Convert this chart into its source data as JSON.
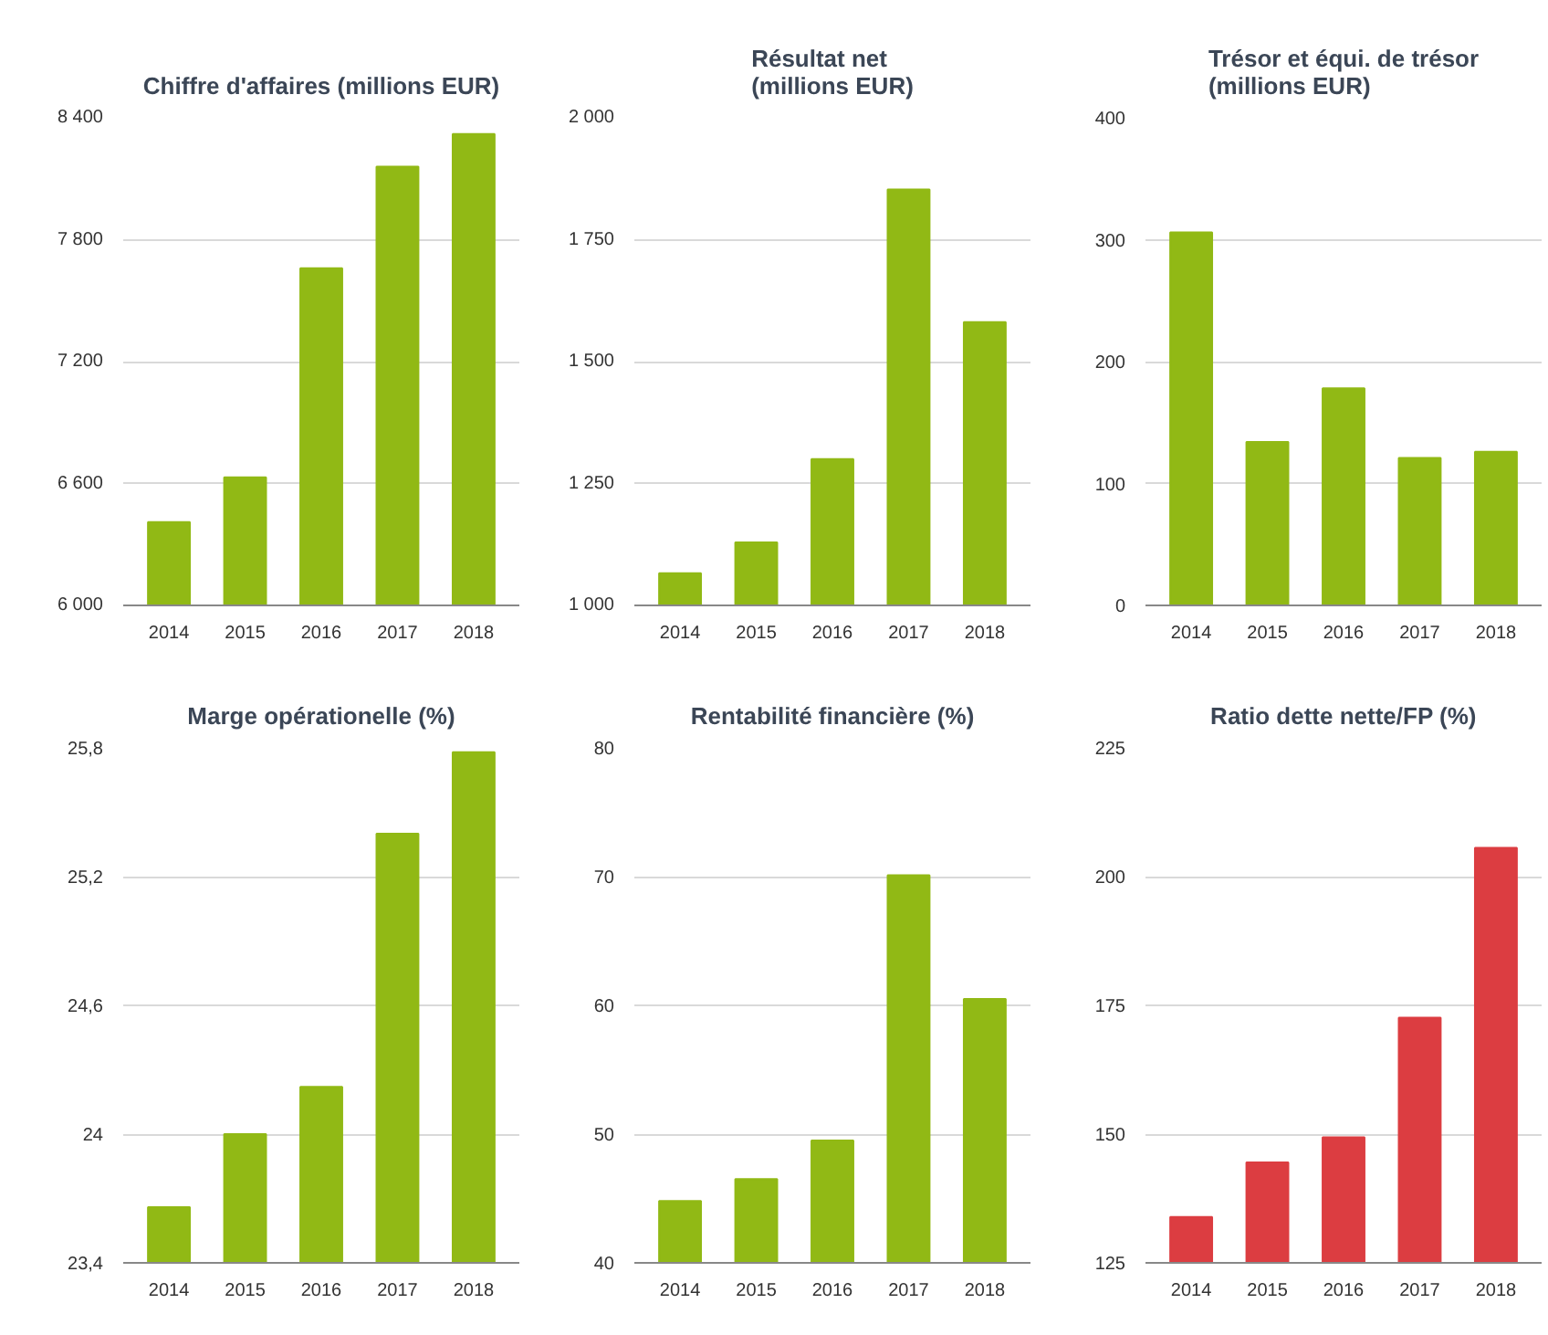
{
  "chart_data": [
    {
      "type": "bar",
      "title": "Chiffre d'affaires (millions EUR)",
      "categories": [
        "2014",
        "2015",
        "2016",
        "2017",
        "2018"
      ],
      "values": [
        6410,
        6630,
        7660,
        8160,
        8320
      ],
      "color": "#91b915",
      "ylim": [
        6000,
        8400
      ],
      "yticks": [
        {
          "value": 6000,
          "label": "6 000"
        },
        {
          "value": 6600,
          "label": "6 600"
        },
        {
          "value": 7200,
          "label": "7 200"
        },
        {
          "value": 7800,
          "label": "7 800"
        },
        {
          "value": 8400,
          "label": "8 400"
        }
      ],
      "grid": "y"
    },
    {
      "type": "bar",
      "title": "Résultat net\n(millions EUR)",
      "categories": [
        "2014",
        "2015",
        "2016",
        "2017",
        "2018"
      ],
      "values": [
        1066,
        1129,
        1300,
        1853,
        1581
      ],
      "color": "#91b915",
      "ylim": [
        1000,
        2000
      ],
      "yticks": [
        {
          "value": 1000,
          "label": "1 000"
        },
        {
          "value": 1250,
          "label": "1 250"
        },
        {
          "value": 1500,
          "label": "1 500"
        },
        {
          "value": 1750,
          "label": "1 750"
        },
        {
          "value": 2000,
          "label": "2 000"
        }
      ],
      "grid": "y"
    },
    {
      "type": "bar",
      "title": "Trésor et équi. de trésor\n(millions EUR)",
      "categories": [
        "2014",
        "2015",
        "2016",
        "2017",
        "2018"
      ],
      "values": [
        306,
        134,
        178,
        121,
        126
      ],
      "color": "#91b915",
      "ylim": [
        0,
        400
      ],
      "yticks": [
        0,
        100,
        200,
        300,
        400
      ],
      "grid": "y"
    },
    {
      "type": "bar",
      "title": "Marge opérationelle (%)",
      "categories": [
        "2014",
        "2015",
        "2016",
        "2017",
        "2018"
      ],
      "values": [
        23.66,
        24.0,
        24.22,
        25.4,
        25.78
      ],
      "color": "#91b915",
      "ylim": [
        23.4,
        25.8
      ],
      "yticks": [
        {
          "value": 23.4,
          "label": "23,4"
        },
        24,
        {
          "value": 24.6,
          "label": "24,6"
        },
        {
          "value": 25.2,
          "label": "25,2"
        },
        {
          "value": 25.8,
          "label": "25,8"
        }
      ],
      "grid": "y"
    },
    {
      "type": "bar",
      "title": "Rentabilité financière (%)",
      "categories": [
        "2014",
        "2015",
        "2016",
        "2017",
        "2018"
      ],
      "values": [
        44.8,
        46.5,
        49.5,
        70.1,
        60.5
      ],
      "color": "#91b915",
      "ylim": [
        40,
        80
      ],
      "yticks": [
        40,
        50,
        60,
        70,
        80
      ],
      "grid": "y"
    },
    {
      "type": "bar",
      "title": "Ratio dette nette/FP (%)",
      "categories": [
        "2014",
        "2015",
        "2016",
        "2017",
        "2018"
      ],
      "values": [
        133.9,
        144.5,
        149.4,
        172.6,
        205.6
      ],
      "color": "#dc3d41",
      "ylim": [
        125,
        225
      ],
      "yticks": [
        125,
        150,
        175,
        200,
        225
      ],
      "grid": "y"
    }
  ]
}
